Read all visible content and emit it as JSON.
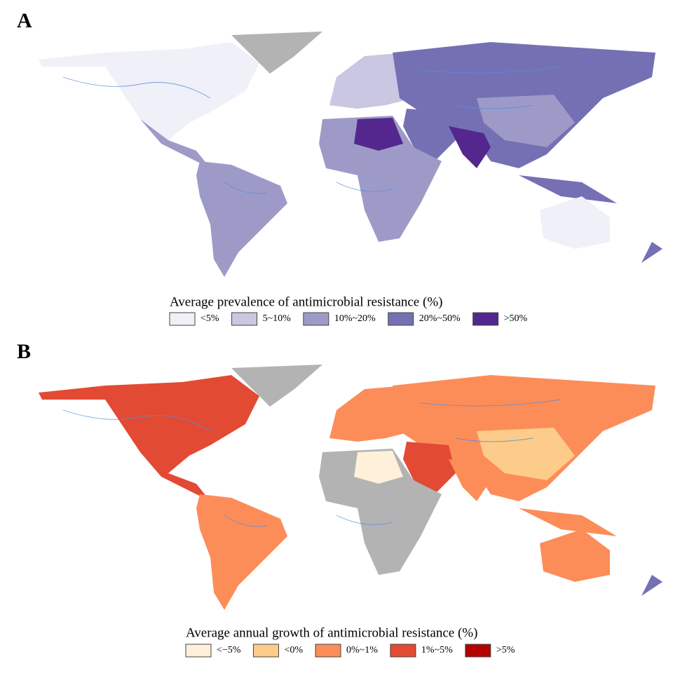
{
  "panels": [
    {
      "label": "A",
      "legend_title": "Average prevalence of antimicrobial resistance (%)",
      "legend": [
        {
          "label": "<5%",
          "color": "#f0f0f8"
        },
        {
          "label": "5~10%",
          "color": "#c9c7e1"
        },
        {
          "label": "10%~20%",
          "color": "#9e9ac8"
        },
        {
          "label": "20%~50%",
          "color": "#7570b3"
        },
        {
          "label": ">50%",
          "color": "#54278f"
        }
      ]
    },
    {
      "label": "B",
      "legend_title": "Average annual growth of antimicrobial resistance (%)",
      "legend": [
        {
          "label": "<−5%",
          "color": "#fef0d9"
        },
        {
          "label": "<0%",
          "color": "#fdcc8a"
        },
        {
          "label": "0%~1%",
          "color": "#fc8d59"
        },
        {
          "label": "1%~5%",
          "color": "#e34a33"
        },
        {
          "label": ">5%",
          "color": "#b30000"
        }
      ]
    }
  ]
}
